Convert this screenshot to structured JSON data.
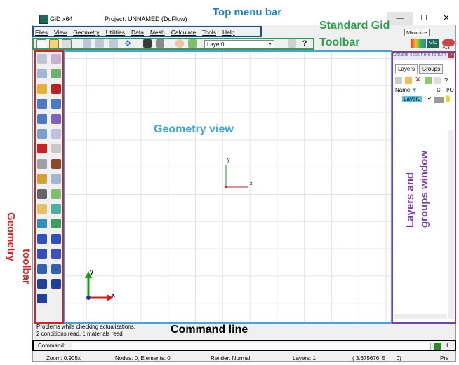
{
  "window": {
    "app_title": "GiD x64",
    "project_title": "Project: UNNAMED (DgFlow)",
    "minimize_symbol": "—",
    "maximize_symbol": "☐",
    "close_symbol": "✕",
    "minimize_tooltip": "Minimize"
  },
  "menu": {
    "items": [
      "Files",
      "View",
      "Geometry",
      "Utilities",
      "Data",
      "Mesh",
      "Calculate",
      "Tools",
      "Help"
    ]
  },
  "toolbar": {
    "layer_select_value": "Layer0",
    "layer_select_arrow": "▼",
    "help_symbol": "?"
  },
  "annotations": {
    "top_menu_bar": "Top menu bar",
    "standard_toolbar_line1": "Standard Gid",
    "standard_toolbar_line2": "Toolbar",
    "geometry_view": "Geometry view",
    "geometry_toolbar_line1": "Geometry",
    "geometry_toolbar_line2": "toolbar",
    "layers_window": "Layers and\ngroups window",
    "command_line": "Command line"
  },
  "view": {
    "center_axis_y": "y",
    "center_axis_x": "x",
    "corner_axis_y": "y",
    "corner_axis_x": "x"
  },
  "layers": {
    "hint": "Double click here to turn",
    "tab_layers": "Layers",
    "tab_groups": "Groups",
    "col_name": "Name",
    "col_c": "C",
    "col_io": "I/O",
    "sort_arrow": "▼",
    "rows": [
      {
        "name": "Layer0",
        "visible_check": "✔"
      }
    ]
  },
  "command": {
    "log_line1": "Problems while checking actualizations.",
    "log_line2": "2 conditions read. 1 materials read",
    "label": "Command:"
  },
  "statusbar": {
    "zoom": "Zoom: 0.905x",
    "nodes": "Nodes: 0, Elements: 0",
    "render": "Render: Normal",
    "layers": "Layers: 1",
    "coords": "( 3.675676, 5     , 0)",
    "mode": "Pre"
  },
  "version_badge": "v13",
  "colors": {
    "menu_annotation": "#1a4f9c",
    "toolbar_annotation": "#2aa24a",
    "geometry_annotation": "#e02020",
    "view_annotation": "#39a8e0",
    "layers_annotation": "#7b3db5",
    "command_annotation": "#000000"
  }
}
